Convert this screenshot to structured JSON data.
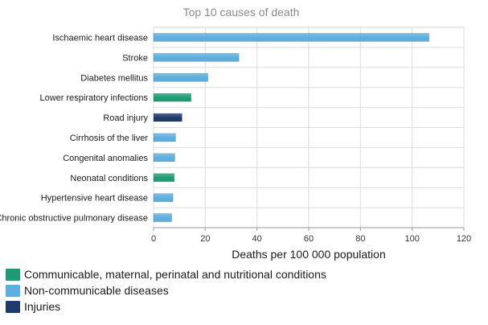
{
  "chart_data": {
    "type": "bar",
    "orientation": "horizontal",
    "title": "Top 10 causes of death",
    "xlabel": "Deaths per 100 000 population",
    "ylabel": "",
    "xlim": [
      0,
      120
    ],
    "xticks": [
      0,
      20,
      40,
      60,
      80,
      100,
      120
    ],
    "grid": true,
    "legend_position": "bottom-left",
    "categories": [
      "Ischaemic heart disease",
      "Stroke",
      "Diabetes mellitus",
      "Lower respiratory infections",
      "Road injury",
      "Cirrhosis of the liver",
      "Congenital anomalies",
      "Neonatal conditions",
      "Hypertensive heart disease",
      "Chronic obstructive pulmonary disease"
    ],
    "values": [
      106.5,
      33,
      21,
      14.5,
      11,
      8.5,
      8.2,
      8,
      7.5,
      7
    ],
    "groups": [
      "noncommunicable",
      "noncommunicable",
      "noncommunicable",
      "communicable",
      "injuries",
      "noncommunicable",
      "noncommunicable",
      "communicable",
      "noncommunicable",
      "noncommunicable"
    ],
    "legend": [
      {
        "key": "communicable",
        "label": "Communicable, maternal, perinatal and nutritional conditions",
        "color": "#1d9c73"
      },
      {
        "key": "noncommunicable",
        "label": "Non-communicable diseases",
        "color": "#5aaee0"
      },
      {
        "key": "injuries",
        "label": "Injuries",
        "color": "#1e3a6b"
      }
    ]
  }
}
